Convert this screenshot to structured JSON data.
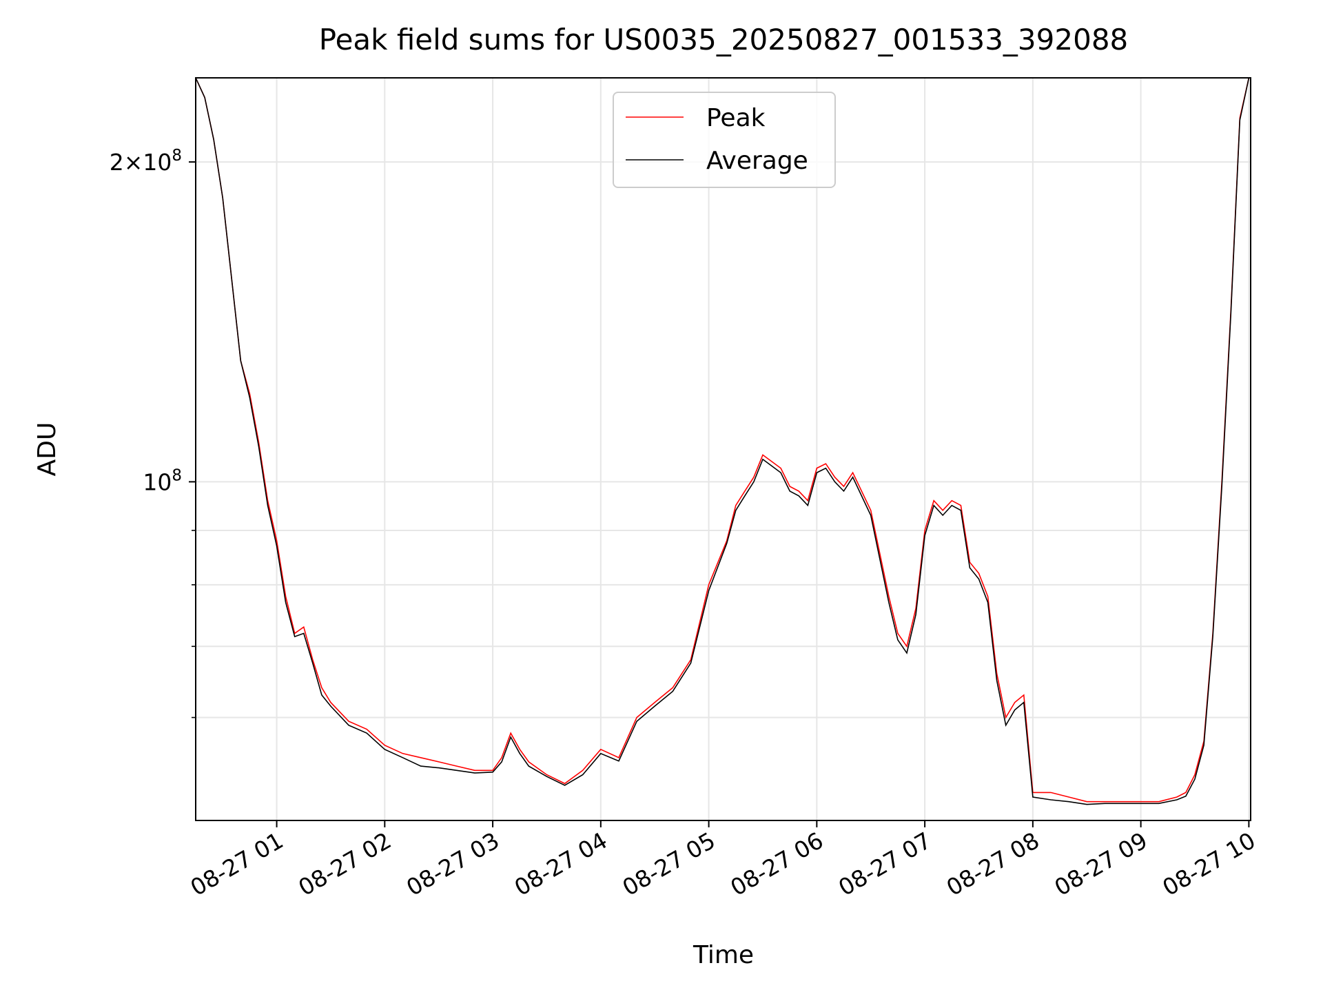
{
  "chart_data": {
    "type": "line",
    "title": "Peak field sums for US0035_20250827_001533_392088",
    "xlabel": "Time",
    "ylabel": "ADU",
    "yscale": "log",
    "ylim": [
      48000000,
      240000000
    ],
    "xlim": [
      "2025-08-27 00:15",
      "2025-08-27 10:01"
    ],
    "grid": true,
    "legend_position": "top-center",
    "x_ticks": [
      "2025-08-27 01:00",
      "2025-08-27 02:00",
      "2025-08-27 03:00",
      "2025-08-27 04:00",
      "2025-08-27 05:00",
      "2025-08-27 06:00",
      "2025-08-27 07:00",
      "2025-08-27 08:00",
      "2025-08-27 09:00",
      "2025-08-27 10:00"
    ],
    "x_tick_labels": [
      "08-27 01",
      "08-27 02",
      "08-27 03",
      "08-27 04",
      "08-27 05",
      "08-27 06",
      "08-27 07",
      "08-27 08",
      "08-27 09",
      "08-27 10"
    ],
    "y_major_ticks": [
      100000000,
      200000000
    ],
    "y_minor_ticks": [
      60000000,
      70000000,
      80000000,
      90000000
    ],
    "y_tick_labels": [
      {
        "base": "10",
        "exp": "8"
      },
      {
        "mant": "2",
        "times": "×",
        "base": "10",
        "exp": "8"
      }
    ],
    "series": [
      {
        "name": "Peak",
        "color": "#ff0000",
        "x": [
          "2025-08-27 00:15",
          "2025-08-27 00:20",
          "2025-08-27 00:25",
          "2025-08-27 00:30",
          "2025-08-27 00:35",
          "2025-08-27 00:40",
          "2025-08-27 00:45",
          "2025-08-27 00:50",
          "2025-08-27 00:55",
          "2025-08-27 01:00",
          "2025-08-27 01:05",
          "2025-08-27 01:10",
          "2025-08-27 01:15",
          "2025-08-27 01:20",
          "2025-08-27 01:25",
          "2025-08-27 01:30",
          "2025-08-27 01:40",
          "2025-08-27 01:50",
          "2025-08-27 02:00",
          "2025-08-27 02:10",
          "2025-08-27 02:20",
          "2025-08-27 02:30",
          "2025-08-27 02:40",
          "2025-08-27 02:50",
          "2025-08-27 03:00",
          "2025-08-27 03:05",
          "2025-08-27 03:10",
          "2025-08-27 03:15",
          "2025-08-27 03:20",
          "2025-08-27 03:30",
          "2025-08-27 03:40",
          "2025-08-27 03:50",
          "2025-08-27 04:00",
          "2025-08-27 04:10",
          "2025-08-27 04:20",
          "2025-08-27 04:30",
          "2025-08-27 04:40",
          "2025-08-27 04:50",
          "2025-08-27 05:00",
          "2025-08-27 05:10",
          "2025-08-27 05:15",
          "2025-08-27 05:20",
          "2025-08-27 05:25",
          "2025-08-27 05:30",
          "2025-08-27 05:40",
          "2025-08-27 05:45",
          "2025-08-27 05:50",
          "2025-08-27 05:55",
          "2025-08-27 06:00",
          "2025-08-27 06:05",
          "2025-08-27 06:10",
          "2025-08-27 06:15",
          "2025-08-27 06:20",
          "2025-08-27 06:30",
          "2025-08-27 06:40",
          "2025-08-27 06:45",
          "2025-08-27 06:50",
          "2025-08-27 06:55",
          "2025-08-27 07:00",
          "2025-08-27 07:05",
          "2025-08-27 07:10",
          "2025-08-27 07:15",
          "2025-08-27 07:20",
          "2025-08-27 07:25",
          "2025-08-27 07:30",
          "2025-08-27 07:35",
          "2025-08-27 07:40",
          "2025-08-27 07:45",
          "2025-08-27 07:50",
          "2025-08-27 07:55",
          "2025-08-27 08:00",
          "2025-08-27 08:10",
          "2025-08-27 08:20",
          "2025-08-27 08:30",
          "2025-08-27 08:40",
          "2025-08-27 08:50",
          "2025-08-27 09:00",
          "2025-08-27 09:10",
          "2025-08-27 09:20",
          "2025-08-27 09:25",
          "2025-08-27 09:30",
          "2025-08-27 09:35",
          "2025-08-27 09:40",
          "2025-08-27 09:45",
          "2025-08-27 09:50",
          "2025-08-27 09:55",
          "2025-08-27 10:00"
        ],
        "y": [
          240000000,
          230000000,
          210000000,
          185000000,
          155000000,
          130000000,
          121000000,
          109000000,
          96000000,
          88000000,
          78000000,
          72000000,
          73000000,
          68000000,
          64000000,
          62000000,
          59500000,
          58500000,
          56500000,
          55500000,
          55000000,
          54500000,
          54000000,
          53500000,
          53500000,
          55000000,
          58000000,
          56000000,
          54500000,
          53000000,
          52000000,
          53500000,
          56000000,
          55000000,
          60000000,
          62000000,
          64000000,
          68000000,
          80000000,
          88000000,
          95000000,
          98000000,
          101000000,
          106000000,
          103000000,
          99000000,
          98000000,
          96000000,
          103000000,
          104000000,
          101000000,
          99000000,
          102000000,
          94000000,
          78000000,
          72000000,
          70000000,
          76000000,
          90000000,
          96000000,
          94000000,
          96000000,
          95000000,
          84000000,
          82000000,
          78000000,
          66000000,
          60000000,
          62000000,
          63000000,
          51000000,
          51000000,
          50500000,
          50000000,
          50000000,
          50000000,
          50000000,
          50000000,
          50500000,
          51000000,
          53000000,
          57000000,
          72000000,
          100000000,
          145000000,
          220000000,
          240000000
        ]
      },
      {
        "name": "Average",
        "color": "#000000",
        "x": [
          "2025-08-27 00:15",
          "2025-08-27 00:20",
          "2025-08-27 00:25",
          "2025-08-27 00:30",
          "2025-08-27 00:35",
          "2025-08-27 00:40",
          "2025-08-27 00:45",
          "2025-08-27 00:50",
          "2025-08-27 00:55",
          "2025-08-27 01:00",
          "2025-08-27 01:05",
          "2025-08-27 01:10",
          "2025-08-27 01:15",
          "2025-08-27 01:20",
          "2025-08-27 01:25",
          "2025-08-27 01:30",
          "2025-08-27 01:40",
          "2025-08-27 01:50",
          "2025-08-27 02:00",
          "2025-08-27 02:10",
          "2025-08-27 02:20",
          "2025-08-27 02:30",
          "2025-08-27 02:40",
          "2025-08-27 02:50",
          "2025-08-27 03:00",
          "2025-08-27 03:05",
          "2025-08-27 03:10",
          "2025-08-27 03:15",
          "2025-08-27 03:20",
          "2025-08-27 03:30",
          "2025-08-27 03:40",
          "2025-08-27 03:50",
          "2025-08-27 04:00",
          "2025-08-27 04:10",
          "2025-08-27 04:20",
          "2025-08-27 04:30",
          "2025-08-27 04:40",
          "2025-08-27 04:50",
          "2025-08-27 05:00",
          "2025-08-27 05:10",
          "2025-08-27 05:15",
          "2025-08-27 05:20",
          "2025-08-27 05:25",
          "2025-08-27 05:30",
          "2025-08-27 05:40",
          "2025-08-27 05:45",
          "2025-08-27 05:50",
          "2025-08-27 05:55",
          "2025-08-27 06:00",
          "2025-08-27 06:05",
          "2025-08-27 06:10",
          "2025-08-27 06:15",
          "2025-08-27 06:20",
          "2025-08-27 06:30",
          "2025-08-27 06:40",
          "2025-08-27 06:45",
          "2025-08-27 06:50",
          "2025-08-27 06:55",
          "2025-08-27 07:00",
          "2025-08-27 07:05",
          "2025-08-27 07:10",
          "2025-08-27 07:15",
          "2025-08-27 07:20",
          "2025-08-27 07:25",
          "2025-08-27 07:30",
          "2025-08-27 07:35",
          "2025-08-27 07:40",
          "2025-08-27 07:45",
          "2025-08-27 07:50",
          "2025-08-27 07:55",
          "2025-08-27 08:00",
          "2025-08-27 08:10",
          "2025-08-27 08:20",
          "2025-08-27 08:30",
          "2025-08-27 08:40",
          "2025-08-27 08:50",
          "2025-08-27 09:00",
          "2025-08-27 09:10",
          "2025-08-27 09:20",
          "2025-08-27 09:25",
          "2025-08-27 09:30",
          "2025-08-27 09:35",
          "2025-08-27 09:40",
          "2025-08-27 09:45",
          "2025-08-27 09:50",
          "2025-08-27 09:55",
          "2025-08-27 10:00"
        ],
        "y": [
          240000000,
          230000000,
          210000000,
          185000000,
          155000000,
          130000000,
          120000000,
          108000000,
          95000000,
          87000000,
          77000000,
          71500000,
          72000000,
          67500000,
          63000000,
          61500000,
          59000000,
          58000000,
          56000000,
          55000000,
          54000000,
          53800000,
          53500000,
          53200000,
          53300000,
          54500000,
          57500000,
          55500000,
          54000000,
          52800000,
          51800000,
          53000000,
          55500000,
          54600000,
          59500000,
          61500000,
          63500000,
          67500000,
          79000000,
          87500000,
          94000000,
          97000000,
          100000000,
          105000000,
          102000000,
          98000000,
          97000000,
          95000000,
          102000000,
          103000000,
          100000000,
          98000000,
          101000000,
          93000000,
          77000000,
          71000000,
          69000000,
          75000000,
          89000000,
          95000000,
          93000000,
          95000000,
          94000000,
          83000000,
          81000000,
          77000000,
          65000000,
          59000000,
          61000000,
          62000000,
          50500000,
          50200000,
          50000000,
          49700000,
          49800000,
          49800000,
          49800000,
          49800000,
          50200000,
          50600000,
          52500000,
          56500000,
          71500000,
          99000000,
          144000000,
          219000000,
          240000000
        ]
      }
    ]
  }
}
